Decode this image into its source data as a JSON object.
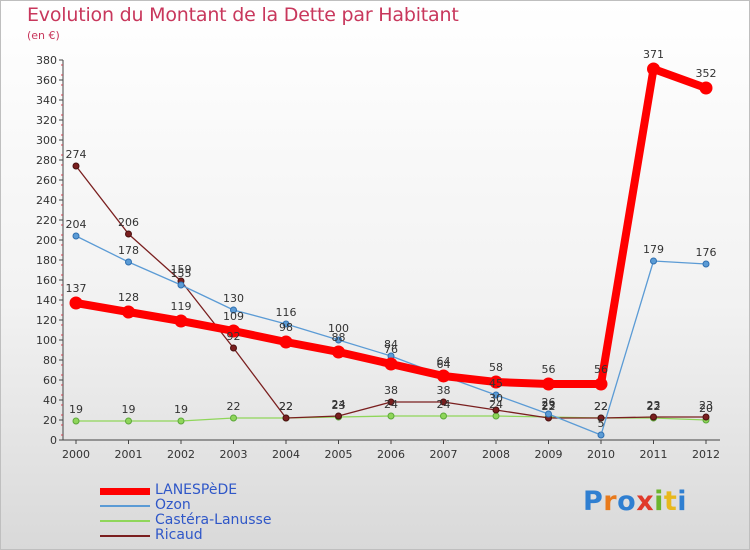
{
  "title": "Evolution du Montant de la Dette par Habitant",
  "subtitle": "(en €)",
  "logo": {
    "text": "Proxiti",
    "letter_colors": [
      "#2f7fd1",
      "#e87a1c",
      "#2f7fd1",
      "#e03a2a",
      "#6cb52d",
      "#e8b81c",
      "#2f7fd1"
    ]
  },
  "chart_data": {
    "type": "line",
    "title": "Evolution du Montant de la Dette par Habitant",
    "ylabel": "(en €)",
    "xlabel": "",
    "ylim": [
      0,
      380
    ],
    "y_ticks": [
      0,
      20,
      40,
      60,
      80,
      100,
      120,
      140,
      160,
      180,
      200,
      220,
      240,
      260,
      280,
      300,
      320,
      340,
      360,
      380
    ],
    "grid": false,
    "legend_position": "bottom-left",
    "x": [
      "2000",
      "2001",
      "2002",
      "2003",
      "2004",
      "2005",
      "2006",
      "2007",
      "2008",
      "2009",
      "2010",
      "2011",
      "2012"
    ],
    "series": [
      {
        "name": "LANESPèDE",
        "color": "#ff0000",
        "values": [
          137,
          128,
          119,
          109,
          98,
          88,
          76,
          64,
          58,
          56,
          56,
          371,
          352
        ]
      },
      {
        "name": "Ozon",
        "color": "#5b9bd5",
        "values": [
          204,
          178,
          155,
          130,
          116,
          100,
          84,
          64,
          45,
          26,
          5,
          179,
          176
        ]
      },
      {
        "name": "Castéra-Lanusse",
        "color": "#8fd65a",
        "values": [
          19,
          19,
          19,
          22,
          22,
          23,
          24,
          24,
          24,
          23,
          22,
          22,
          20
        ]
      },
      {
        "name": "Ricaud",
        "color": "#7a1f1f",
        "values": [
          274,
          206,
          159,
          92,
          22,
          24,
          38,
          38,
          30,
          22,
          22,
          23,
          23
        ]
      }
    ]
  }
}
